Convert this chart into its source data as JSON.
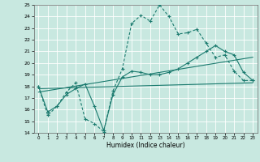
{
  "title": "",
  "xlabel": "Humidex (Indice chaleur)",
  "xlim": [
    -0.5,
    23.5
  ],
  "ylim": [
    14,
    25
  ],
  "yticks": [
    14,
    15,
    16,
    17,
    18,
    19,
    20,
    21,
    22,
    23,
    24,
    25
  ],
  "xticks": [
    0,
    1,
    2,
    3,
    4,
    5,
    6,
    7,
    8,
    9,
    10,
    11,
    12,
    13,
    14,
    15,
    16,
    17,
    18,
    19,
    20,
    21,
    22,
    23
  ],
  "background_color": "#c8e8e0",
  "grid_color": "#ffffff",
  "line_color": "#1a7a6e",
  "line1_x": [
    0,
    1,
    2,
    3,
    4,
    5,
    6,
    7,
    8,
    9,
    10,
    11,
    12,
    13,
    14,
    15,
    16,
    17,
    18,
    19,
    20,
    21,
    22,
    23
  ],
  "line1_y": [
    18.0,
    15.5,
    16.3,
    17.5,
    18.3,
    15.2,
    14.8,
    14.1,
    17.6,
    19.5,
    23.4,
    24.1,
    23.6,
    25.0,
    24.0,
    22.5,
    22.6,
    22.9,
    21.7,
    20.5,
    20.7,
    19.3,
    18.5,
    18.5
  ],
  "line2_x": [
    0,
    1,
    2,
    3,
    4,
    5,
    6,
    7,
    8,
    9,
    10,
    11,
    12,
    13,
    14,
    15,
    16,
    17,
    18,
    19,
    20,
    21,
    22,
    23
  ],
  "line2_y": [
    18.0,
    15.8,
    16.3,
    17.3,
    17.8,
    18.2,
    16.3,
    14.2,
    17.3,
    18.8,
    19.3,
    19.2,
    19.0,
    19.0,
    19.2,
    19.5,
    20.0,
    20.5,
    21.0,
    21.5,
    21.0,
    20.7,
    19.2,
    18.5
  ],
  "line3_x": [
    0,
    23
  ],
  "line3_y": [
    17.8,
    18.3
  ],
  "line4_x": [
    0,
    23
  ],
  "line4_y": [
    17.5,
    20.5
  ]
}
